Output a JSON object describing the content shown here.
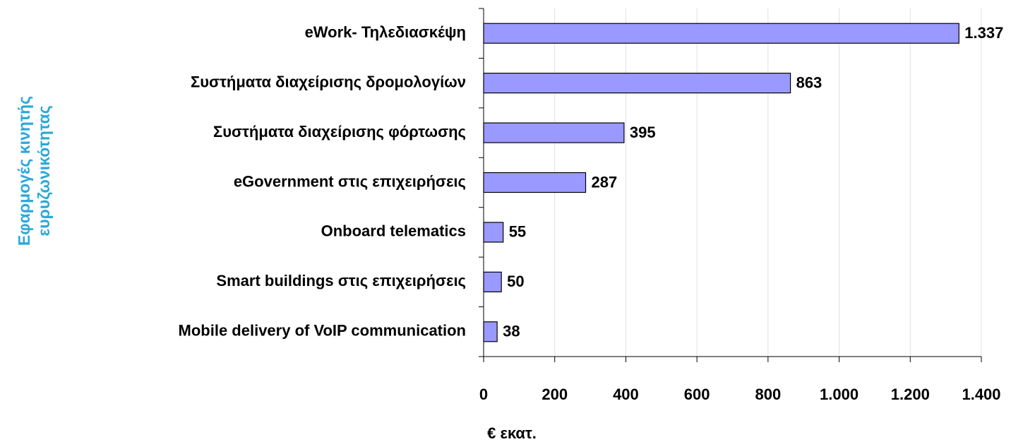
{
  "chart_data": {
    "type": "bar",
    "orientation": "horizontal",
    "ylabel": [
      "Εφαρμογές κινητής",
      "ευρυζωνικότητας"
    ],
    "xlabel": "€ εκατ.",
    "categories": [
      "eWork- Τηλεδιασκέψη",
      "Συστήματα διαχείρισης δρομολογίων",
      "Συστήματα διαχείρισης φόρτωσης",
      "eGovernment στις επιχειρήσεις",
      "Onboard telematics",
      "Smart buildings στις επιχειρήσεις",
      "Mobile delivery of VoIP communication"
    ],
    "values": [
      1337,
      863,
      395,
      287,
      55,
      50,
      38
    ],
    "value_labels": [
      "1.337",
      "863",
      "395",
      "287",
      "55",
      "50",
      "38"
    ],
    "color": "#9999ff",
    "xlim": [
      0,
      1400
    ],
    "xticks": [
      0,
      200,
      400,
      600,
      800,
      {
        "value": 1000,
        "label": "1.000"
      },
      {
        "value": 1200,
        "label": "1.200"
      },
      {
        "value": 1400,
        "label": "1.400"
      }
    ],
    "grid": true
  }
}
